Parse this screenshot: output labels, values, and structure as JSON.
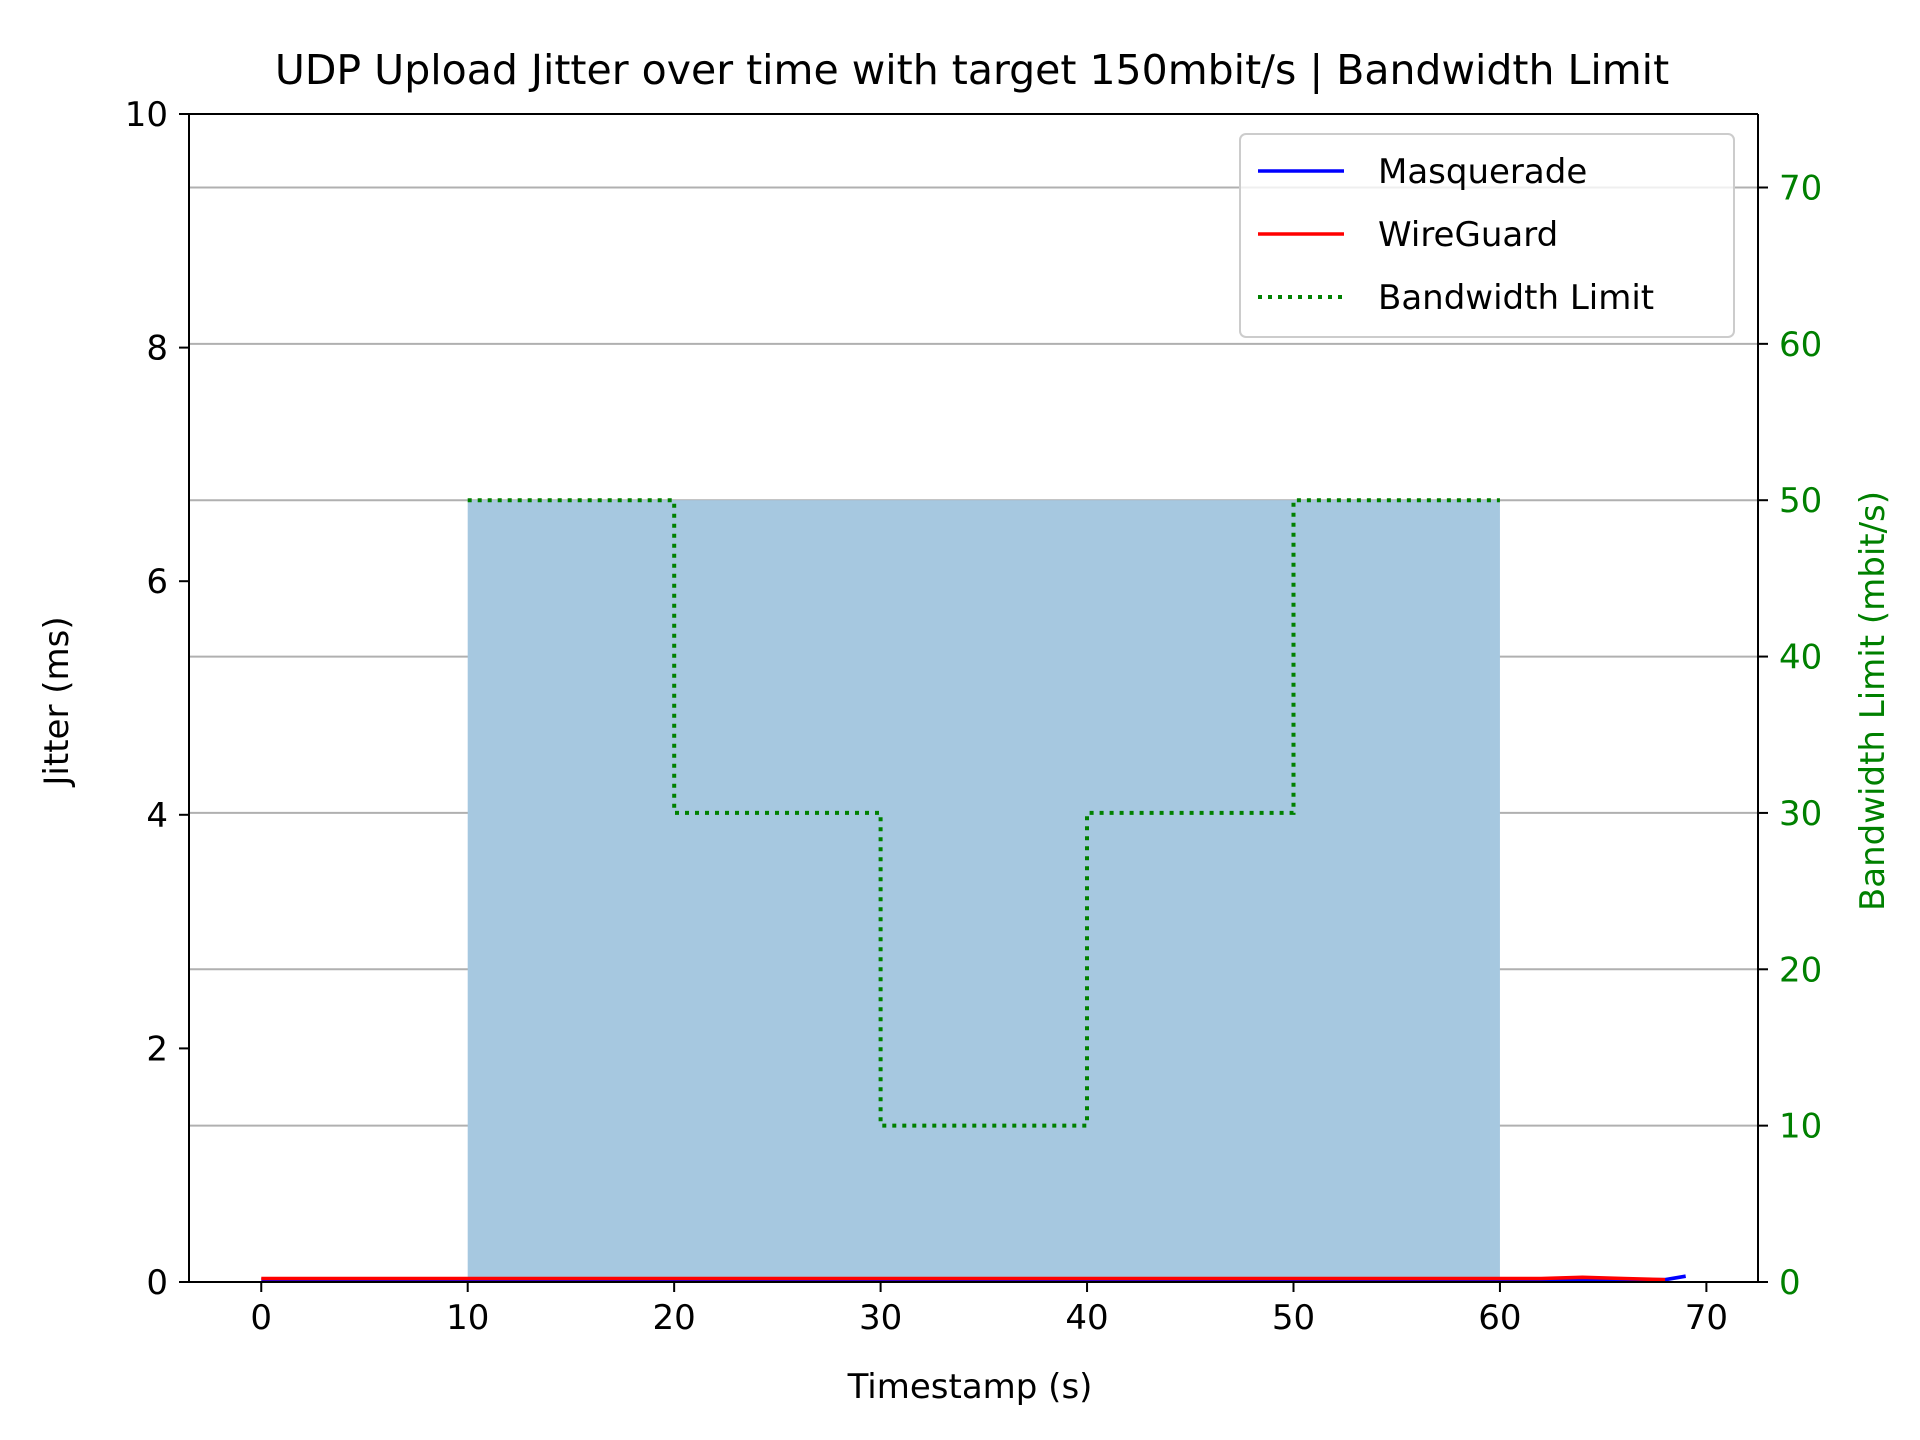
{
  "chart_data": {
    "type": "line",
    "title": "UDP Upload Jitter over time with target 150mbit/s | Bandwidth Limit",
    "xlabel": "Timestamp (s)",
    "ylabel": "Jitter (ms)",
    "y2label": "Bandwidth Limit (mbit/s)",
    "xlim": [
      -3.5,
      72.5
    ],
    "ylim": [
      0,
      10
    ],
    "y2lim": [
      0,
      74.7
    ],
    "xticks": [
      "0",
      "10",
      "20",
      "30",
      "40",
      "50",
      "60",
      "70"
    ],
    "yticks": [
      "0",
      "2",
      "4",
      "6",
      "8",
      "10"
    ],
    "y2ticks": [
      "0",
      "10",
      "20",
      "30",
      "40",
      "50",
      "60",
      "70"
    ],
    "grid": "horizontal lines at right-axis ticks",
    "legend_position": "upper right",
    "colors": {
      "masquerade": "#0000ff",
      "wireguard": "#ff0000",
      "bandwidth_limit": "#008000",
      "fill": "#a6c8e0",
      "y2_axis": "#008000"
    },
    "series": [
      {
        "name": "Masquerade",
        "axis": "left",
        "style": "solid",
        "x": [
          0,
          10,
          20,
          30,
          40,
          50,
          60,
          65,
          68,
          69
        ],
        "y": [
          0.02,
          0.02,
          0.02,
          0.02,
          0.02,
          0.02,
          0.02,
          0.02,
          0.02,
          0.05
        ]
      },
      {
        "name": "WireGuard",
        "axis": "left",
        "style": "solid",
        "x": [
          0,
          10,
          20,
          30,
          40,
          50,
          60,
          62,
          64,
          66,
          68
        ],
        "y": [
          0.03,
          0.03,
          0.03,
          0.03,
          0.03,
          0.03,
          0.03,
          0.03,
          0.04,
          0.03,
          0.02
        ]
      },
      {
        "name": "Bandwidth Limit",
        "axis": "right",
        "style": "dotted-step",
        "x": [
          10,
          20,
          20,
          30,
          30,
          40,
          40,
          50,
          50,
          60
        ],
        "y": [
          50,
          50,
          30,
          30,
          10,
          10,
          30,
          30,
          50,
          50
        ]
      }
    ],
    "fill_region": {
      "axis": "right",
      "x": [
        10,
        60
      ],
      "y": [
        0,
        50
      ]
    }
  }
}
